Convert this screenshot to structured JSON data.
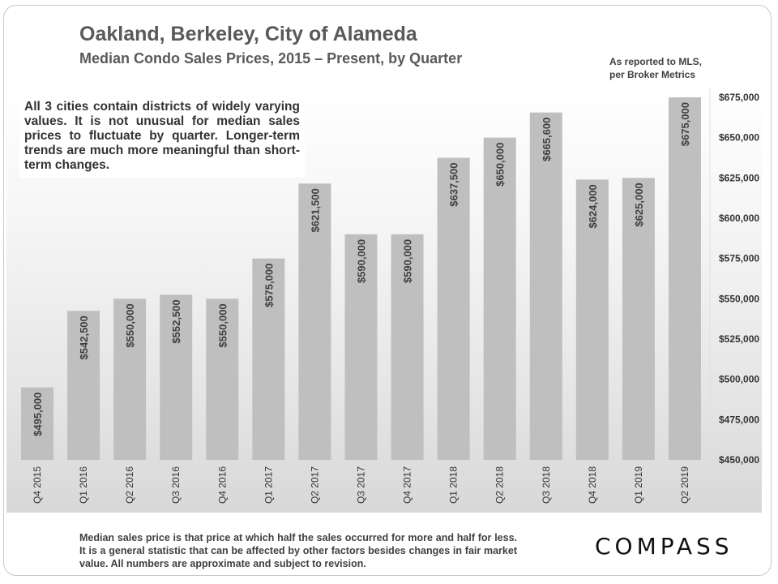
{
  "title": "Oakland, Berkeley, City of Alameda",
  "subtitle": "Median Condo Sales Prices, 2015 – Present, by Quarter",
  "source_lines": [
    "As reported to MLS,",
    "per Broker Metrics"
  ],
  "note": "All 3 cities contain districts of widely varying values. It is not unusual for median sales prices to fluctuate by quarter. Longer-term trends are much more meaningful than short-term changes.",
  "footer": "Median sales price is that price at which half the sales occurred for more and half for less. It is a general statistic that can be affected by other factors besides changes in fair market value. All numbers are approximate and subject to revision.",
  "logo": "COMPASS",
  "colors": {
    "bar": "#bfbfbf",
    "text": "#404040",
    "title": "#595959"
  },
  "chart_data": {
    "type": "bar",
    "categories": [
      "Q4 2015",
      "Q1 2016",
      "Q2 2016",
      "Q3 2016",
      "Q4 2016",
      "Q1 2017",
      "Q2 2017",
      "Q3 2017",
      "Q4 2017",
      "Q1 2018",
      "Q2 2018",
      "Q3 2018",
      "Q4 2018",
      "Q1 2019",
      "Q2 2019"
    ],
    "values": [
      495000,
      542500,
      550000,
      552500,
      550000,
      575000,
      621500,
      590000,
      590000,
      637500,
      650000,
      665600,
      624000,
      625000,
      675000
    ],
    "data_labels": [
      "$495,000",
      "$542,500",
      "$550,000",
      "$552,500",
      "$550,000",
      "$575,000",
      "$621,500",
      "$590,000",
      "$590,000",
      "$637,500",
      "$650,000",
      "$665,600",
      "$624,000",
      "$625,000",
      "$675,000"
    ],
    "ylim": [
      450000,
      675000
    ],
    "yticks": [
      450000,
      475000,
      500000,
      525000,
      550000,
      575000,
      600000,
      625000,
      650000,
      675000
    ],
    "ytick_labels": [
      "$450,000",
      "$475,000",
      "$500,000",
      "$525,000",
      "$550,000",
      "$575,000",
      "$600,000",
      "$625,000",
      "$650,000",
      "$675,000"
    ],
    "y_axis_position": "right",
    "grid": false,
    "legend": "none"
  }
}
